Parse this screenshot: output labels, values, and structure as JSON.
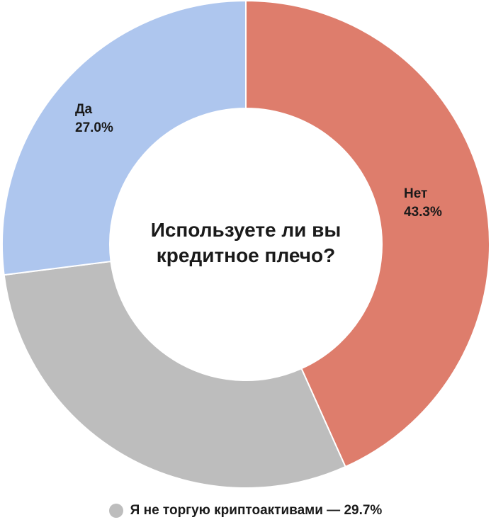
{
  "chart_data": {
    "type": "pie",
    "title": "Используете ли вы кредитное плечо?",
    "title_lines": [
      "Используете ли вы",
      "кредитное плечо?"
    ],
    "slices": [
      {
        "label": "Нет",
        "value": 43.3,
        "value_label": "43.3%",
        "color": "#DE7D6C"
      },
      {
        "label": "Я не торгую криптоактивами",
        "value": 29.7,
        "value_label": "29.7%",
        "color": "#BDBDBD"
      },
      {
        "label": "Да",
        "value": 27.0,
        "value_label": "27.0%",
        "color": "#AEC6EE"
      }
    ],
    "legend": {
      "text": "Я не торгую криптоактивами — 29.7%",
      "color": "#BDBDBD",
      "placement": "bottom"
    },
    "donut": true,
    "start_angle_deg": 0,
    "direction": "clockwise"
  }
}
